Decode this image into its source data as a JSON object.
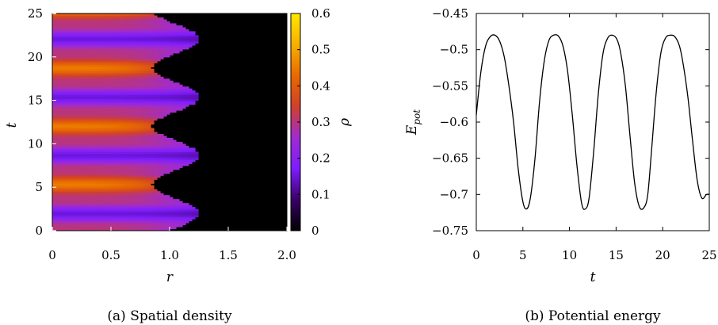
{
  "chart_data": [
    {
      "type": "heatmap",
      "caption": "(a) Spatial density",
      "xlabel": "r",
      "ylabel": "t",
      "colorbar_label": "ρ",
      "xlim": [
        0,
        2.0
      ],
      "ylim": [
        0,
        25
      ],
      "xticks": [
        "0",
        "0.5",
        "1.0",
        "1.5",
        "2.0"
      ],
      "yticks": [
        "0",
        "5",
        "10",
        "15",
        "20",
        "25"
      ],
      "colorbar_range": [
        0,
        0.6
      ],
      "colorbar_ticks": [
        "0",
        "0.1",
        "0.2",
        "0.3",
        "0.4",
        "0.5",
        "0.6"
      ],
      "colormap": [
        "#000000",
        "#3a0066",
        "#7d1dff",
        "#a02bd0",
        "#d0402a",
        "#e86a00",
        "#f8b000",
        "#ffe800"
      ],
      "background_color": "#000000",
      "oscillation_period": 6.7,
      "boundary_r_range": [
        0.85,
        1.25
      ],
      "density_range": [
        0.15,
        0.45
      ]
    },
    {
      "type": "line",
      "caption": "(b) Potential energy",
      "xlabel": "t",
      "ylabel_base": "E",
      "ylabel_sub": "pot",
      "xlim": [
        0,
        25
      ],
      "ylim": [
        -0.75,
        -0.45
      ],
      "xticks": [
        "0",
        "5",
        "10",
        "15",
        "20",
        "25"
      ],
      "yticks": [
        "−0.45",
        "−0.5",
        "−0.55",
        "−0.6",
        "−0.65",
        "−0.7",
        "−0.75"
      ],
      "series": [
        {
          "x": [
            0,
            0.5,
            1.0,
            1.5,
            2.0,
            2.5,
            3.0,
            3.5,
            4.0,
            4.5,
            5.0,
            5.4,
            5.8,
            6.3,
            6.8,
            7.3,
            7.8,
            8.3,
            8.8,
            9.3,
            9.8,
            10.3,
            10.8,
            11.3,
            11.7,
            12.1,
            12.6,
            13.1,
            13.6,
            14.1,
            14.6,
            15.1,
            15.5,
            16.0,
            16.5,
            17.0,
            17.5,
            18.0,
            18.4,
            18.8,
            19.3,
            19.8,
            20.3,
            20.8,
            21.3,
            21.8,
            22.2,
            22.7,
            23.2,
            23.7,
            24.2,
            24.7,
            25.0
          ],
          "y": [
            -0.59,
            -0.53,
            -0.495,
            -0.482,
            -0.48,
            -0.488,
            -0.51,
            -0.55,
            -0.6,
            -0.665,
            -0.71,
            -0.72,
            -0.705,
            -0.65,
            -0.57,
            -0.515,
            -0.487,
            -0.48,
            -0.481,
            -0.495,
            -0.53,
            -0.59,
            -0.66,
            -0.712,
            -0.72,
            -0.705,
            -0.64,
            -0.56,
            -0.505,
            -0.484,
            -0.48,
            -0.486,
            -0.505,
            -0.55,
            -0.62,
            -0.685,
            -0.717,
            -0.718,
            -0.7,
            -0.64,
            -0.56,
            -0.505,
            -0.484,
            -0.48,
            -0.482,
            -0.495,
            -0.52,
            -0.565,
            -0.625,
            -0.68,
            -0.705,
            -0.7,
            -0.7
          ]
        }
      ]
    }
  ]
}
